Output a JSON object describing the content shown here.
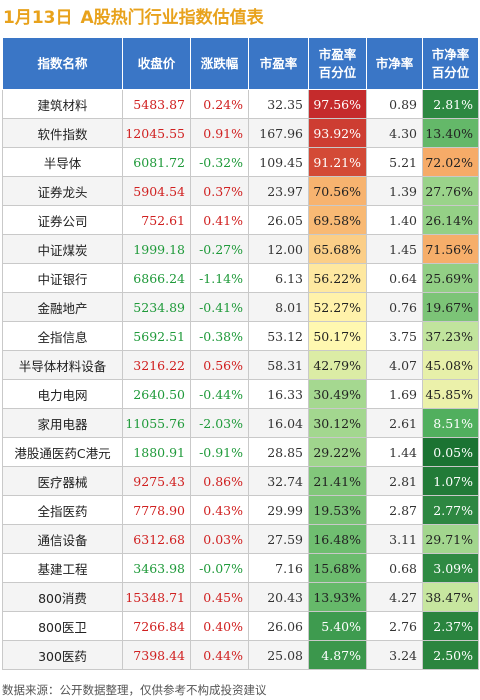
{
  "title": {
    "date": "1月13日",
    "text": "A股热门行业指数估值表"
  },
  "headers": [
    "指数名称",
    "收盘价",
    "涨跌幅",
    "市盈率",
    "市盈率\n百分位",
    "市净率",
    "市净率\n百分位"
  ],
  "rows": [
    {
      "name": "建筑材料",
      "close": "5483.87",
      "chg": "0.24%",
      "pe": "32.35",
      "pe_pct": "97.56%",
      "pb": "0.89",
      "pb_pct": "2.81%"
    },
    {
      "name": "软件指数",
      "close": "12045.55",
      "chg": "0.91%",
      "pe": "167.96",
      "pe_pct": "93.92%",
      "pb": "4.30",
      "pb_pct": "13.40%"
    },
    {
      "name": "半导体",
      "close": "6081.72",
      "chg": "-0.32%",
      "pe": "109.45",
      "pe_pct": "91.21%",
      "pb": "5.21",
      "pb_pct": "72.02%"
    },
    {
      "name": "证券龙头",
      "close": "5904.54",
      "chg": "0.37%",
      "pe": "23.97",
      "pe_pct": "70.56%",
      "pb": "1.39",
      "pb_pct": "27.76%"
    },
    {
      "name": "证券公司",
      "close": "752.61",
      "chg": "0.41%",
      "pe": "26.05",
      "pe_pct": "69.58%",
      "pb": "1.40",
      "pb_pct": "26.14%"
    },
    {
      "name": "中证煤炭",
      "close": "1999.18",
      "chg": "-0.27%",
      "pe": "12.00",
      "pe_pct": "65.68%",
      "pb": "1.45",
      "pb_pct": "71.56%"
    },
    {
      "name": "中证银行",
      "close": "6866.24",
      "chg": "-1.14%",
      "pe": "6.13",
      "pe_pct": "56.22%",
      "pb": "0.64",
      "pb_pct": "25.69%"
    },
    {
      "name": "金融地产",
      "close": "5234.89",
      "chg": "-0.41%",
      "pe": "8.01",
      "pe_pct": "52.27%",
      "pb": "0.76",
      "pb_pct": "19.67%"
    },
    {
      "name": "全指信息",
      "close": "5692.51",
      "chg": "-0.38%",
      "pe": "53.12",
      "pe_pct": "50.17%",
      "pb": "3.75",
      "pb_pct": "37.23%"
    },
    {
      "name": "半导体材料设备",
      "close": "3216.22",
      "chg": "0.56%",
      "pe": "58.31",
      "pe_pct": "42.79%",
      "pb": "4.07",
      "pb_pct": "45.08%"
    },
    {
      "name": "电力电网",
      "close": "2640.50",
      "chg": "-0.44%",
      "pe": "16.33",
      "pe_pct": "30.49%",
      "pb": "1.69",
      "pb_pct": "45.85%"
    },
    {
      "name": "家用电器",
      "close": "11055.76",
      "chg": "-2.03%",
      "pe": "16.04",
      "pe_pct": "30.12%",
      "pb": "2.61",
      "pb_pct": "8.51%"
    },
    {
      "name": "港股通医药C港元",
      "close": "1880.91",
      "chg": "-0.91%",
      "pe": "28.85",
      "pe_pct": "29.22%",
      "pb": "1.44",
      "pb_pct": "0.05%"
    },
    {
      "name": "医疗器械",
      "close": "9275.43",
      "chg": "0.86%",
      "pe": "32.74",
      "pe_pct": "21.41%",
      "pb": "2.81",
      "pb_pct": "1.07%"
    },
    {
      "name": "全指医药",
      "close": "7778.90",
      "chg": "0.43%",
      "pe": "29.99",
      "pe_pct": "19.53%",
      "pb": "2.87",
      "pb_pct": "2.77%"
    },
    {
      "name": "通信设备",
      "close": "6312.68",
      "chg": "0.03%",
      "pe": "27.59",
      "pe_pct": "16.48%",
      "pb": "3.11",
      "pb_pct": "29.71%"
    },
    {
      "name": "基建工程",
      "close": "3463.98",
      "chg": "-0.07%",
      "pe": "7.16",
      "pe_pct": "15.68%",
      "pb": "0.68",
      "pb_pct": "3.09%"
    },
    {
      "name": "800消费",
      "close": "15348.71",
      "chg": "0.45%",
      "pe": "20.43",
      "pe_pct": "13.93%",
      "pb": "4.27",
      "pb_pct": "38.47%"
    },
    {
      "name": "800医卫",
      "close": "7266.84",
      "chg": "0.40%",
      "pe": "26.06",
      "pe_pct": "5.40%",
      "pb": "2.76",
      "pb_pct": "2.37%"
    },
    {
      "name": "300医药",
      "close": "7398.44",
      "chg": "0.44%",
      "pe": "25.08",
      "pe_pct": "4.87%",
      "pb": "3.24",
      "pb_pct": "2.50%"
    }
  ],
  "footer": "数据来源：公开数据整理，仅供参考不构成投资建议",
  "colors": {
    "header_bg": "#3a76c6",
    "title": "#e8a21c",
    "up": "#d02020",
    "down": "#1f9a3a",
    "heat_high": "#c0202a",
    "heat_mid": "#fff4a8",
    "heat_low": "#1e7a34"
  }
}
